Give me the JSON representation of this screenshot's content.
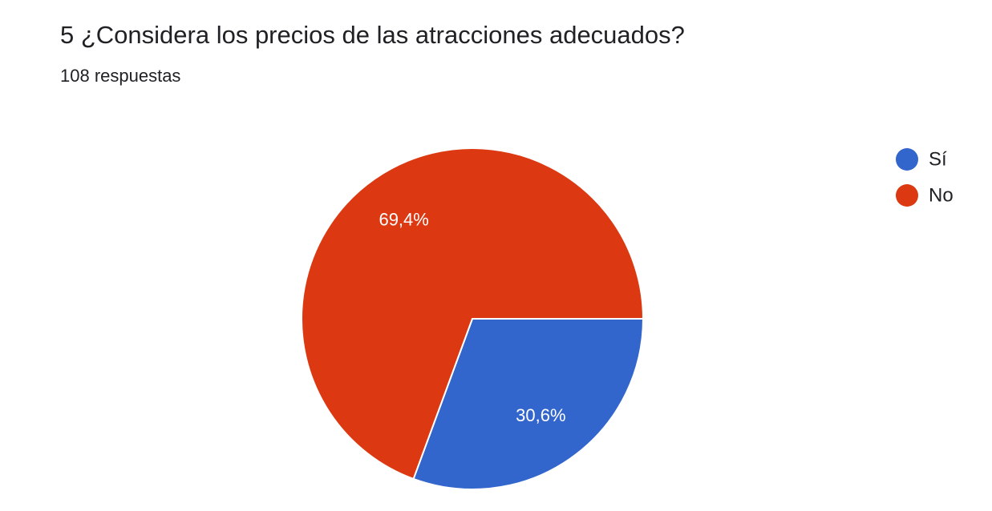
{
  "chart_data": {
    "type": "pie",
    "title": "5 ¿Considera los precios de las atracciones adecuados?",
    "subtitle": "108 respuestas",
    "categories": [
      "Sí",
      "No"
    ],
    "values": [
      30.6,
      69.4
    ],
    "value_labels": [
      "30,6%",
      "69,4%"
    ],
    "colors": [
      "#3366cc",
      "#dc3912"
    ],
    "legend": "right"
  }
}
